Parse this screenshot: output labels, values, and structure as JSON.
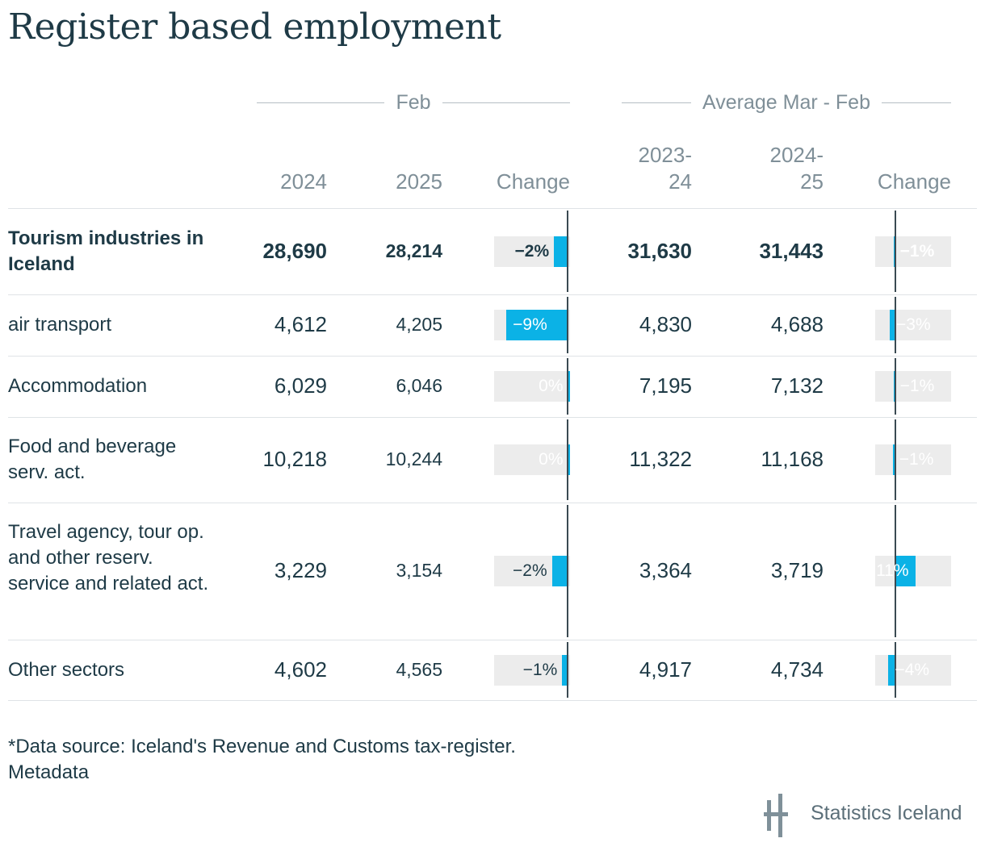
{
  "title": "Register based employment",
  "groups": {
    "feb": "Feb",
    "avg": "Average Mar - Feb"
  },
  "columns": {
    "c2024": "2024",
    "c2025": "2025",
    "change1": "Change",
    "c2023_24_a": "2023-",
    "c2023_24_b": "24",
    "c2024_25_a": "2024-",
    "c2024_25_b": "25",
    "change2": "Change"
  },
  "chart_data": {
    "type": "table",
    "title": "Register based employment",
    "columns": [
      "2024",
      "2025",
      "Change",
      "2023-24",
      "2024-25",
      "Change"
    ],
    "rows": [
      {
        "label": "Tourism industries in Iceland",
        "bold": true,
        "feb2024": "28,690",
        "feb2025": "28,214",
        "feb_change": -2,
        "feb_change_label": "−2%",
        "avg2023_24": "31,630",
        "avg2024_25": "31,443",
        "avg_change": -1,
        "avg_change_label": "−1%"
      },
      {
        "label": "air transport",
        "bold": false,
        "feb2024": "4,612",
        "feb2025": "4,205",
        "feb_change": -9,
        "feb_change_label": "−9%",
        "avg2023_24": "4,830",
        "avg2024_25": "4,688",
        "avg_change": -3,
        "avg_change_label": "−3%"
      },
      {
        "label": "Accommodation",
        "bold": false,
        "feb2024": "6,029",
        "feb2025": "6,046",
        "feb_change": 0.3,
        "feb_change_label": "0%",
        "avg2023_24": "7,195",
        "avg2024_25": "7,132",
        "avg_change": -1,
        "avg_change_label": "−1%"
      },
      {
        "label": "Food and beverage serv. act.",
        "bold": false,
        "feb2024": "10,218",
        "feb2025": "10,244",
        "feb_change": 0.3,
        "feb_change_label": "0%",
        "avg2023_24": "11,322",
        "avg2024_25": "11,168",
        "avg_change": -1.4,
        "avg_change_label": "−1%"
      },
      {
        "label": "Travel agency, tour op. and other reserv. service and related act.",
        "bold": false,
        "feb2024": "3,229",
        "feb2025": "3,154",
        "feb_change": -2.3,
        "feb_change_label": "−2%",
        "avg2023_24": "3,364",
        "avg2024_25": "3,719",
        "avg_change": 10.6,
        "avg_change_label": "11%"
      },
      {
        "label": "Other sectors",
        "bold": false,
        "feb2024": "4,602",
        "feb2025": "4,565",
        "feb_change": -0.8,
        "feb_change_label": "−1%",
        "avg2023_24": "4,917",
        "avg2024_25": "4,734",
        "avg_change": -3.7,
        "avg_change_label": "−4%"
      }
    ],
    "bar_color": "#0bb2e6",
    "bar_bg_color": "#ececec"
  },
  "footnote": {
    "line1": "*Data source: Iceland's Revenue and Customs tax-register.",
    "line2": "Metadata"
  },
  "brand": {
    "name": "Statistics Iceland"
  }
}
